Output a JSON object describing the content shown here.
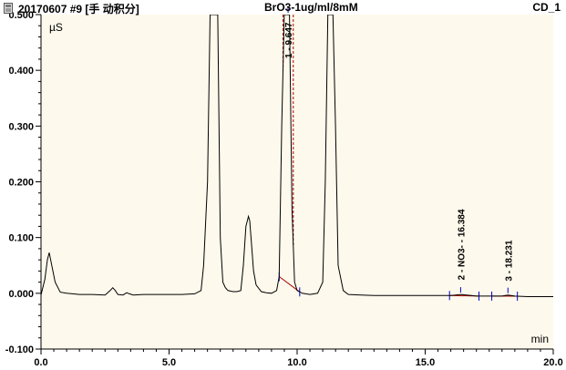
{
  "header": {
    "file_label": "20170607 #9 [手 动积分]",
    "sample_name": "BrO3-1ug/ml/8mM",
    "channel": "CD_1"
  },
  "colors": {
    "plot_background": "#fdf9ec",
    "trace": "#000000",
    "integration": "#b00000",
    "marker": "#0000cc"
  },
  "icons": [
    "file-icon"
  ],
  "chart_data": {
    "type": "line",
    "title": "BrO3-1ug/ml/8mM",
    "xlabel": "min",
    "ylabel": "µS",
    "xlim": [
      0.0,
      20.0
    ],
    "ylim": [
      -0.1,
      0.5
    ],
    "xticks": [
      "0.0",
      "5.0",
      "10.0",
      "15.0",
      "20.0"
    ],
    "yticks": [
      "-0.100",
      "0.000",
      "0.100",
      "0.200",
      "0.300",
      "0.400",
      "0.500"
    ],
    "grid": false,
    "series": [
      {
        "x": [
          0.0,
          0.15,
          0.25,
          0.32,
          0.4,
          0.55,
          0.75,
          1.0,
          1.5,
          2.0,
          2.5,
          2.7,
          2.8,
          2.9,
          3.0,
          3.2,
          3.35,
          3.45,
          3.6,
          4.0,
          4.5,
          5.0,
          5.5,
          6.0,
          6.25,
          6.35,
          6.5,
          6.6,
          6.7,
          6.8,
          6.9,
          7.0,
          7.1,
          7.2,
          7.3,
          7.5,
          7.65,
          7.8,
          7.9,
          8.0,
          8.1,
          8.15,
          8.2,
          8.3,
          8.4,
          8.6,
          8.8,
          9.0,
          9.2,
          9.3,
          9.4,
          9.5,
          9.6,
          9.65,
          9.7,
          9.8,
          9.9,
          10.0,
          10.2,
          10.5,
          10.8,
          11.0,
          11.1,
          11.2,
          11.3,
          11.4,
          11.5,
          11.6,
          11.8,
          12.0,
          12.5,
          13.0,
          14.0,
          15.0,
          15.5,
          16.0,
          16.2,
          16.4,
          16.6,
          16.8,
          17.0,
          17.5,
          18.0,
          18.23,
          18.5,
          19.0,
          19.5,
          20.0
        ],
        "y": [
          -0.003,
          0.025,
          0.06,
          0.073,
          0.055,
          0.02,
          0.002,
          0.0,
          -0.002,
          -0.002,
          -0.003,
          0.005,
          0.01,
          0.005,
          -0.002,
          -0.003,
          0.001,
          -0.001,
          -0.003,
          -0.002,
          -0.002,
          -0.002,
          -0.002,
          -0.001,
          0.005,
          0.05,
          0.2,
          0.5,
          0.5,
          0.5,
          0.5,
          0.1,
          0.02,
          0.01,
          0.005,
          0.003,
          0.003,
          0.005,
          0.05,
          0.12,
          0.138,
          0.13,
          0.1,
          0.04,
          0.015,
          0.003,
          0.001,
          0.0,
          0.005,
          0.03,
          0.3,
          0.5,
          0.5,
          0.5,
          0.5,
          0.15,
          0.02,
          0.005,
          0.0,
          -0.002,
          0.0,
          0.02,
          0.2,
          0.5,
          0.5,
          0.5,
          0.3,
          0.05,
          0.005,
          -0.002,
          -0.003,
          -0.004,
          -0.004,
          -0.004,
          -0.004,
          -0.004,
          -0.003,
          -0.002,
          -0.003,
          -0.004,
          -0.005,
          -0.005,
          -0.005,
          -0.003,
          -0.005,
          -0.006,
          -0.006,
          -0.006
        ]
      }
    ],
    "peaks": [
      {
        "label": "1 - 9.647",
        "rt": 9.647,
        "start": 9.3,
        "end": 10.1
      },
      {
        "label": "2 - NO3- - 16.384",
        "rt": 16.384,
        "start": 15.95,
        "end": 17.1
      },
      {
        "label": "3 - 18.231",
        "rt": 18.231,
        "start": 17.6,
        "end": 18.6
      }
    ]
  }
}
